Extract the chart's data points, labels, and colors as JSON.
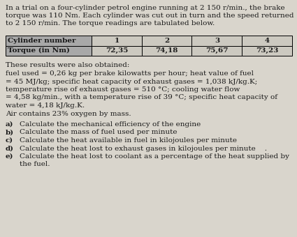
{
  "intro_text": "In a trial on a four-cylinder petrol engine running at 2 150 r/min., the brake\ntorque was 110 Nm. Each cylinder was cut out in turn and the speed returned\nto 2 150 r/min. The torque readings are tabulated below.",
  "row1": [
    "Cylinder number",
    "1",
    "2",
    "3",
    "4"
  ],
  "row2": [
    "Torque (in Nm)",
    "72,35",
    "74,18",
    "75,67",
    "73,23"
  ],
  "body_lines": [
    "These results were also obtained:",
    "fuel used = 0,26 kg per brake kilowatts per hour; heat value of fuel",
    "= 45 MJ/kg; specific heat capacity of exhaust gases = 1,038 kJ/kg.K;",
    "temperature rise of exhaust gases = 510 °C; cooling water flow",
    "= 4,58 kg/min., with a temperature rise of 39 °C; specific heat capacity of",
    "water = 4,18 kJ/kg.K.",
    "Air contains 23% oxygen by mass."
  ],
  "questions": [
    [
      "a)",
      "Calculate the mechanical efficiency of the engine"
    ],
    [
      "b)",
      "Calculate the mass of fuel used per minute"
    ],
    [
      "c)",
      "Calculate the heat available in fuel in kilojoules per minute"
    ],
    [
      "d)",
      "Calculate the heat lost to exhaust gases in kilojoules per minute    ."
    ],
    [
      "e)",
      "Calculate the heat lost to coolant as a percentage of the heat supplied by"
    ],
    [
      "",
      "the fuel."
    ]
  ],
  "bg_color": "#d9d5cc",
  "header_col_bg": "#a8a8a8",
  "data_bg": "#ccc9c0",
  "border_color": "#000000",
  "text_color": "#1a1a1a",
  "font_size": 7.5
}
